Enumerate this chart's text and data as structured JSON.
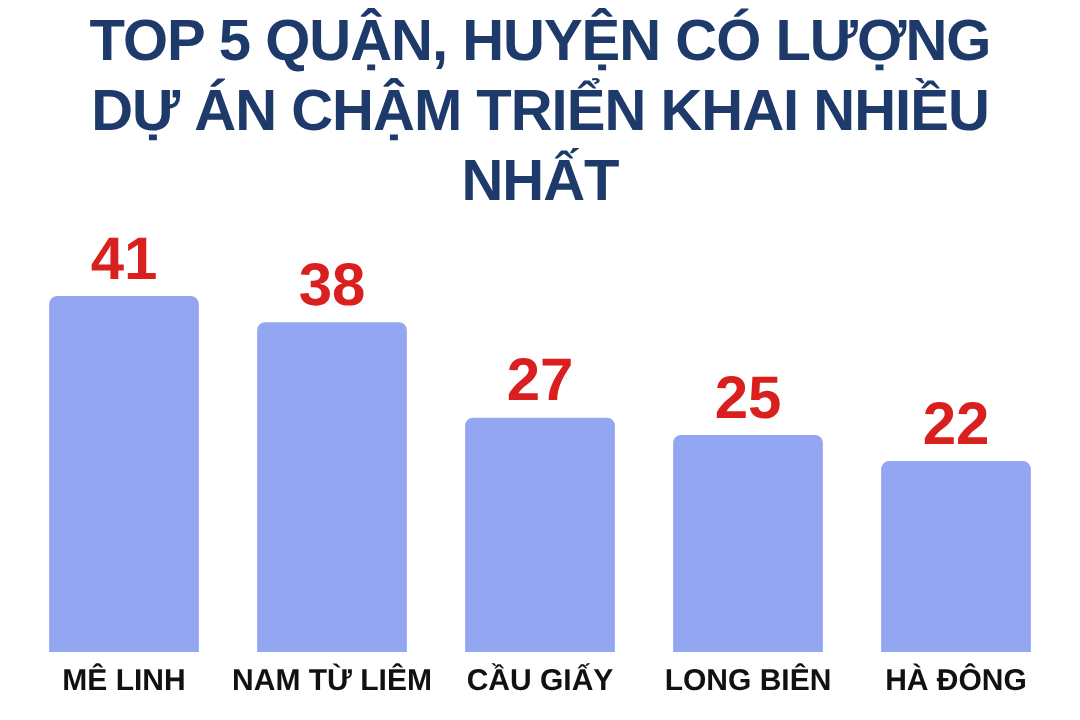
{
  "chart_data": {
    "type": "bar",
    "title": "TOP 5 QUẬN, HUYỆN CÓ LƯỢNG DỰ ÁN CHẬM TRIỂN KHAI NHIỀU NHẤT",
    "categories": [
      "MÊ LINH",
      "NAM TỪ LIÊM",
      "CẦU GIẤY",
      "LONG BIÊN",
      "HÀ ĐÔNG"
    ],
    "values": [
      41,
      38,
      27,
      25,
      22
    ],
    "color": "#93a6f2",
    "data_labels": true,
    "grid": false,
    "legend": false,
    "tick_labels": "x"
  }
}
